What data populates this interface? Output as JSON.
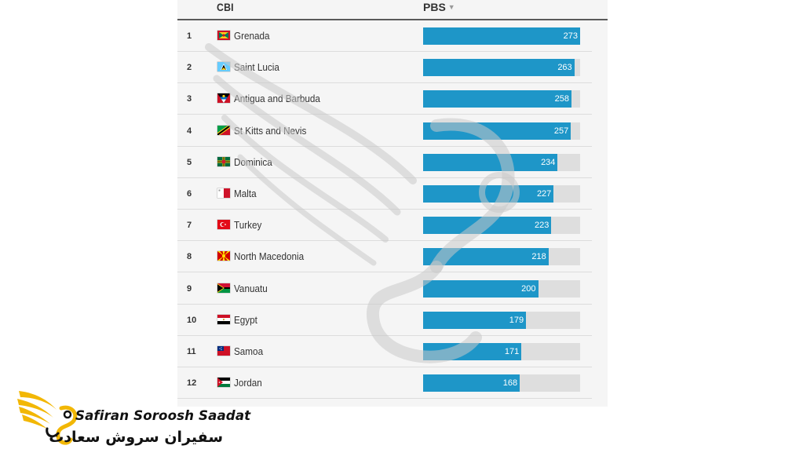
{
  "header": {
    "column_cbi": "CBI",
    "column_pbs": "PBS",
    "sort_icon": "sort-desc-icon"
  },
  "chart_data": {
    "type": "bar",
    "orientation": "horizontal",
    "title": "",
    "xlabel": "PBS",
    "ylabel": "CBI",
    "xlim": [
      0,
      273
    ],
    "bar_color": "#1e96c8",
    "track_color": "#dedede",
    "ranks": [
      "1",
      "2",
      "3",
      "4",
      "5",
      "6",
      "7",
      "8",
      "9",
      "10",
      "11",
      "12"
    ],
    "categories": [
      "Grenada",
      "Saint Lucia",
      "Antigua and Barbuda",
      "St Kitts and Nevis",
      "Dominica",
      "Malta",
      "Turkey",
      "North Macedonia",
      "Vanuatu",
      "Egypt",
      "Samoa",
      "Jordan"
    ],
    "flags": [
      "grenada-flag",
      "saint-lucia-flag",
      "antigua-flag",
      "st-kitts-flag",
      "dominica-flag",
      "malta-flag",
      "turkey-flag",
      "north-macedonia-flag",
      "vanuatu-flag",
      "egypt-flag",
      "samoa-flag",
      "jordan-flag"
    ],
    "values": [
      273,
      263,
      258,
      257,
      234,
      227,
      223,
      218,
      200,
      179,
      171,
      168
    ]
  },
  "logo": {
    "name_en": "Safiran Soroosh Saadat",
    "name_fa": "سفیران سروش سعادت",
    "brand_color": "#f2b705"
  }
}
